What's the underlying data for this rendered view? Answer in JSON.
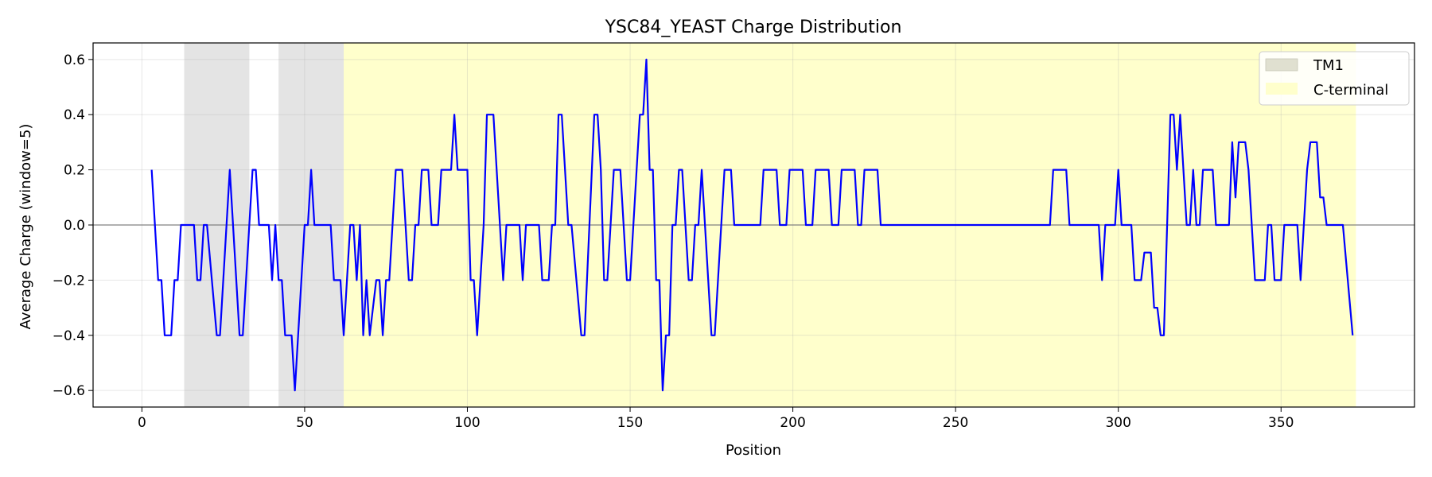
{
  "chart_data": {
    "type": "line",
    "title": "YSC84_YEAST Charge Distribution",
    "xlabel": "Position",
    "ylabel": "Average Charge (window=5)",
    "xlim": [
      -15,
      391
    ],
    "ylim": [
      -0.66,
      0.66
    ],
    "xticks": [
      0,
      50,
      100,
      150,
      200,
      250,
      300,
      350
    ],
    "yticks": [
      -0.6,
      -0.4,
      -0.2,
      0.0,
      0.2,
      0.4,
      0.6
    ],
    "xtick_labels": [
      "0",
      "50",
      "100",
      "150",
      "200",
      "250",
      "300",
      "350"
    ],
    "ytick_labels": [
      "−0.6",
      "−0.4",
      "−0.2",
      "0.0",
      "0.2",
      "0.4",
      "0.6"
    ],
    "grid": true,
    "zero_line": true,
    "legend_position": "top-right",
    "regions": [
      {
        "name": "TM1",
        "start": 13,
        "end": 33,
        "color": "#e4e4e4"
      },
      {
        "name": "TM1",
        "start": 42,
        "end": 62,
        "color": "#e4e4e4"
      },
      {
        "name": "C-terminal",
        "start": 62,
        "end": 373,
        "color": "#ffffcc"
      }
    ],
    "legend": [
      {
        "label": "TM1",
        "color": "#e0e0d0"
      },
      {
        "label": "C-terminal",
        "color": "#ffffcc"
      }
    ],
    "series": [
      {
        "color": "#0000ff",
        "points": [
          [
            3,
            0.2
          ],
          [
            5,
            -0.2
          ],
          [
            6,
            -0.2
          ],
          [
            7,
            -0.4
          ],
          [
            9,
            -0.4
          ],
          [
            10,
            -0.2
          ],
          [
            11,
            -0.2
          ],
          [
            12,
            0.0
          ],
          [
            16,
            0.0
          ],
          [
            17,
            -0.2
          ],
          [
            18,
            -0.2
          ],
          [
            19,
            0.0
          ],
          [
            20,
            0.0
          ],
          [
            23,
            -0.4
          ],
          [
            24,
            -0.4
          ],
          [
            27,
            0.2
          ],
          [
            30,
            -0.4
          ],
          [
            31,
            -0.4
          ],
          [
            34,
            0.2
          ],
          [
            35,
            0.2
          ],
          [
            36,
            0.0
          ],
          [
            39,
            0.0
          ],
          [
            40,
            -0.2
          ],
          [
            41,
            0.0
          ],
          [
            42,
            -0.2
          ],
          [
            43,
            -0.2
          ],
          [
            44,
            -0.4
          ],
          [
            46,
            -0.4
          ],
          [
            47,
            -0.6
          ],
          [
            50,
            0.0
          ],
          [
            51,
            0.0
          ],
          [
            52,
            0.2
          ],
          [
            53,
            0.0
          ],
          [
            58,
            0.0
          ],
          [
            59,
            -0.2
          ],
          [
            61,
            -0.2
          ],
          [
            62,
            -0.4
          ],
          [
            64,
            0.0
          ],
          [
            65,
            0.0
          ],
          [
            66,
            -0.2
          ],
          [
            67,
            0.0
          ],
          [
            68,
            -0.4
          ],
          [
            69,
            -0.2
          ],
          [
            70,
            -0.4
          ],
          [
            72,
            -0.2
          ],
          [
            73,
            -0.2
          ],
          [
            74,
            -0.4
          ],
          [
            75,
            -0.2
          ],
          [
            76,
            -0.2
          ],
          [
            78,
            0.2
          ],
          [
            80,
            0.2
          ],
          [
            82,
            -0.2
          ],
          [
            83,
            -0.2
          ],
          [
            84,
            0.0
          ],
          [
            85,
            0.0
          ],
          [
            86,
            0.2
          ],
          [
            88,
            0.2
          ],
          [
            89,
            0.0
          ],
          [
            91,
            0.0
          ],
          [
            92,
            0.2
          ],
          [
            95,
            0.2
          ],
          [
            96,
            0.4
          ],
          [
            97,
            0.2
          ],
          [
            100,
            0.2
          ],
          [
            101,
            -0.2
          ],
          [
            102,
            -0.2
          ],
          [
            103,
            -0.4
          ],
          [
            105,
            0.0
          ],
          [
            106,
            0.4
          ],
          [
            108,
            0.4
          ],
          [
            111,
            -0.2
          ],
          [
            112,
            0.0
          ],
          [
            116,
            0.0
          ],
          [
            117,
            -0.2
          ],
          [
            118,
            0.0
          ],
          [
            122,
            0.0
          ],
          [
            123,
            -0.2
          ],
          [
            125,
            -0.2
          ],
          [
            126,
            0.0
          ],
          [
            127,
            0.0
          ],
          [
            128,
            0.4
          ],
          [
            129,
            0.4
          ],
          [
            131,
            0.0
          ],
          [
            132,
            0.0
          ],
          [
            135,
            -0.4
          ],
          [
            136,
            -0.4
          ],
          [
            139,
            0.4
          ],
          [
            140,
            0.4
          ],
          [
            141,
            0.2
          ],
          [
            142,
            -0.2
          ],
          [
            143,
            -0.2
          ],
          [
            145,
            0.2
          ],
          [
            147,
            0.2
          ],
          [
            149,
            -0.2
          ],
          [
            150,
            -0.2
          ],
          [
            153,
            0.4
          ],
          [
            154,
            0.4
          ],
          [
            155,
            0.6
          ],
          [
            156,
            0.2
          ],
          [
            157,
            0.2
          ],
          [
            158,
            -0.2
          ],
          [
            159,
            -0.2
          ],
          [
            160,
            -0.6
          ],
          [
            161,
            -0.4
          ],
          [
            162,
            -0.4
          ],
          [
            163,
            0.0
          ],
          [
            164,
            0.0
          ],
          [
            165,
            0.2
          ],
          [
            166,
            0.2
          ],
          [
            168,
            -0.2
          ],
          [
            169,
            -0.2
          ],
          [
            170,
            0.0
          ],
          [
            171,
            0.0
          ],
          [
            172,
            0.2
          ],
          [
            175,
            -0.4
          ],
          [
            176,
            -0.4
          ],
          [
            179,
            0.2
          ],
          [
            181,
            0.2
          ],
          [
            182,
            0.0
          ],
          [
            190,
            0.0
          ],
          [
            191,
            0.2
          ],
          [
            195,
            0.2
          ],
          [
            196,
            0.0
          ],
          [
            198,
            0.0
          ],
          [
            199,
            0.2
          ],
          [
            203,
            0.2
          ],
          [
            204,
            0.0
          ],
          [
            206,
            0.0
          ],
          [
            207,
            0.2
          ],
          [
            211,
            0.2
          ],
          [
            212,
            0.0
          ],
          [
            214,
            0.0
          ],
          [
            215,
            0.2
          ],
          [
            219,
            0.2
          ],
          [
            220,
            0.0
          ],
          [
            221,
            0.0
          ],
          [
            222,
            0.2
          ],
          [
            226,
            0.2
          ],
          [
            227,
            0.0
          ],
          [
            279,
            0.0
          ],
          [
            280,
            0.2
          ],
          [
            284,
            0.2
          ],
          [
            285,
            0.0
          ],
          [
            294,
            0.0
          ],
          [
            295,
            -0.2
          ],
          [
            296,
            0.0
          ],
          [
            299,
            0.0
          ],
          [
            300,
            0.2
          ],
          [
            301,
            0.0
          ],
          [
            304,
            0.0
          ],
          [
            305,
            -0.2
          ],
          [
            307,
            -0.2
          ],
          [
            308,
            -0.1
          ],
          [
            310,
            -0.1
          ],
          [
            311,
            -0.3
          ],
          [
            312,
            -0.3
          ],
          [
            313,
            -0.4
          ],
          [
            314,
            -0.4
          ],
          [
            316,
            0.4
          ],
          [
            317,
            0.4
          ],
          [
            318,
            0.2
          ],
          [
            319,
            0.4
          ],
          [
            321,
            0.0
          ],
          [
            322,
            0.0
          ],
          [
            323,
            0.2
          ],
          [
            324,
            0.0
          ],
          [
            325,
            0.0
          ],
          [
            326,
            0.2
          ],
          [
            329,
            0.2
          ],
          [
            330,
            0.0
          ],
          [
            334,
            0.0
          ],
          [
            335,
            0.3
          ],
          [
            336,
            0.1
          ],
          [
            337,
            0.3
          ],
          [
            339,
            0.3
          ],
          [
            340,
            0.2
          ],
          [
            342,
            -0.2
          ],
          [
            345,
            -0.2
          ],
          [
            346,
            0.0
          ],
          [
            347,
            0.0
          ],
          [
            348,
            -0.2
          ],
          [
            350,
            -0.2
          ],
          [
            351,
            0.0
          ],
          [
            355,
            0.0
          ],
          [
            356,
            -0.2
          ],
          [
            358,
            0.2
          ],
          [
            359,
            0.3
          ],
          [
            361,
            0.3
          ],
          [
            362,
            0.1
          ],
          [
            363,
            0.1
          ],
          [
            364,
            0.0
          ],
          [
            369,
            0.0
          ],
          [
            372,
            -0.4
          ]
        ]
      }
    ]
  }
}
